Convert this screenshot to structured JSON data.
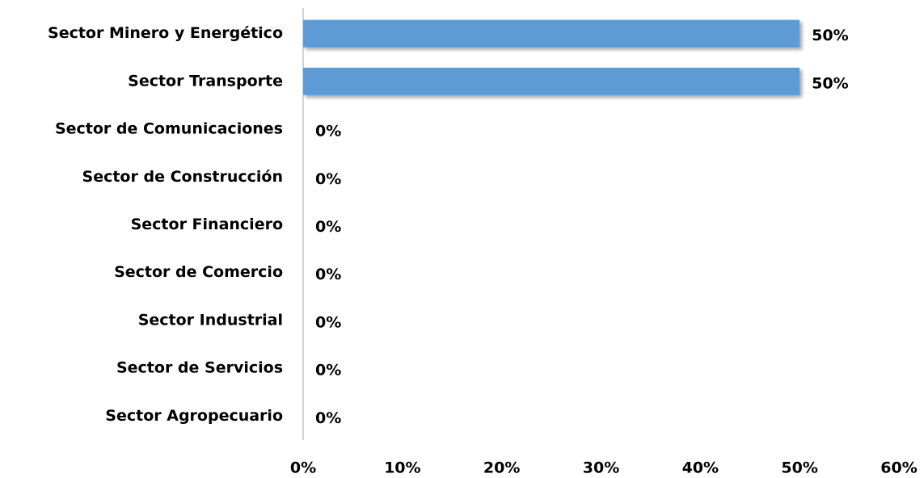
{
  "chart_data": {
    "type": "barh",
    "categories": [
      "Sector Minero y Energético",
      "Sector Transporte",
      "Sector de Comunicaciones",
      "Sector de Construcción",
      "Sector Financiero",
      "Sector de Comercio",
      "Sector Industrial",
      "Sector de Servicios",
      "Sector Agropecuario"
    ],
    "values": [
      50,
      50,
      0,
      0,
      0,
      0,
      0,
      0,
      0
    ],
    "value_labels": [
      "50%",
      "50%",
      "0%",
      "0%",
      "0%",
      "0%",
      "0%",
      "0%",
      "0%"
    ],
    "color": "#5b9bd5",
    "xlim": [
      0,
      60
    ],
    "xticks": [
      {
        "value": 0,
        "label": "0%"
      },
      {
        "value": 10,
        "label": "10%"
      },
      {
        "value": 20,
        "label": "20%"
      },
      {
        "value": 30,
        "label": "30%"
      },
      {
        "value": 40,
        "label": "40%"
      },
      {
        "value": 50,
        "label": "50%"
      },
      {
        "value": 60,
        "label": "60%"
      }
    ],
    "grid": false
  }
}
